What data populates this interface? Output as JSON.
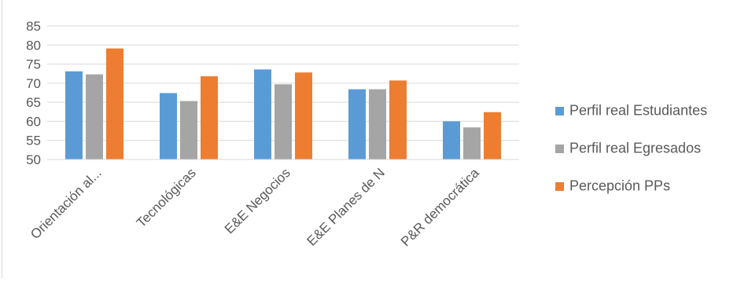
{
  "chart_data": {
    "type": "bar",
    "title": "",
    "xlabel": "",
    "ylabel": "",
    "ylim": [
      50,
      85
    ],
    "yticks": [
      50,
      55,
      60,
      65,
      70,
      75,
      80,
      85
    ],
    "grid": true,
    "legend_position": "right",
    "categories": [
      "Orientación al...",
      "Tecnológicas",
      "E&E Negocios",
      "E&E Planes de N",
      "P&R democrática"
    ],
    "series": [
      {
        "name": "Perfil real Estudiantes",
        "color": "#5b9bd5",
        "values": [
          73.1,
          67.4,
          73.6,
          68.4,
          60.0
        ]
      },
      {
        "name": "Perfil real Egresados",
        "color": "#a5a5a5",
        "values": [
          72.3,
          65.3,
          69.7,
          68.4,
          58.4
        ]
      },
      {
        "name": "Percepción PPs",
        "color": "#ed7d31",
        "values": [
          79.1,
          71.8,
          72.8,
          70.7,
          62.4
        ]
      }
    ]
  }
}
